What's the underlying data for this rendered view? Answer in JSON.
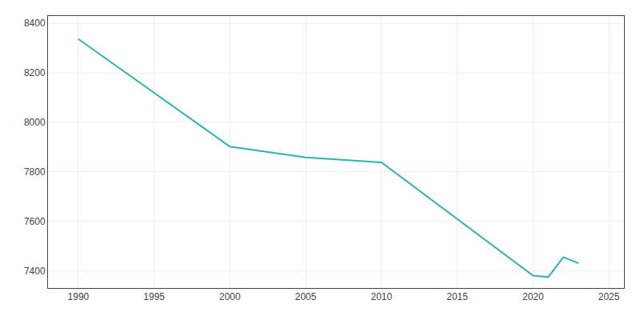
{
  "chart_data": {
    "type": "line",
    "x": [
      1990,
      2000,
      2005,
      2010,
      2020,
      2021,
      2022,
      2023
    ],
    "values": [
      8337,
      7902,
      7858,
      7838,
      7380,
      7374,
      7455,
      7430
    ],
    "color": "#2ab5b0",
    "xlim": [
      1988,
      2026
    ],
    "ylim": [
      7330,
      8430
    ],
    "xticks": [
      1990,
      1995,
      2000,
      2005,
      2010,
      2015,
      2020,
      2025
    ],
    "yticks": [
      7400,
      7600,
      7800,
      8000,
      8200,
      8400
    ],
    "grid": true
  }
}
